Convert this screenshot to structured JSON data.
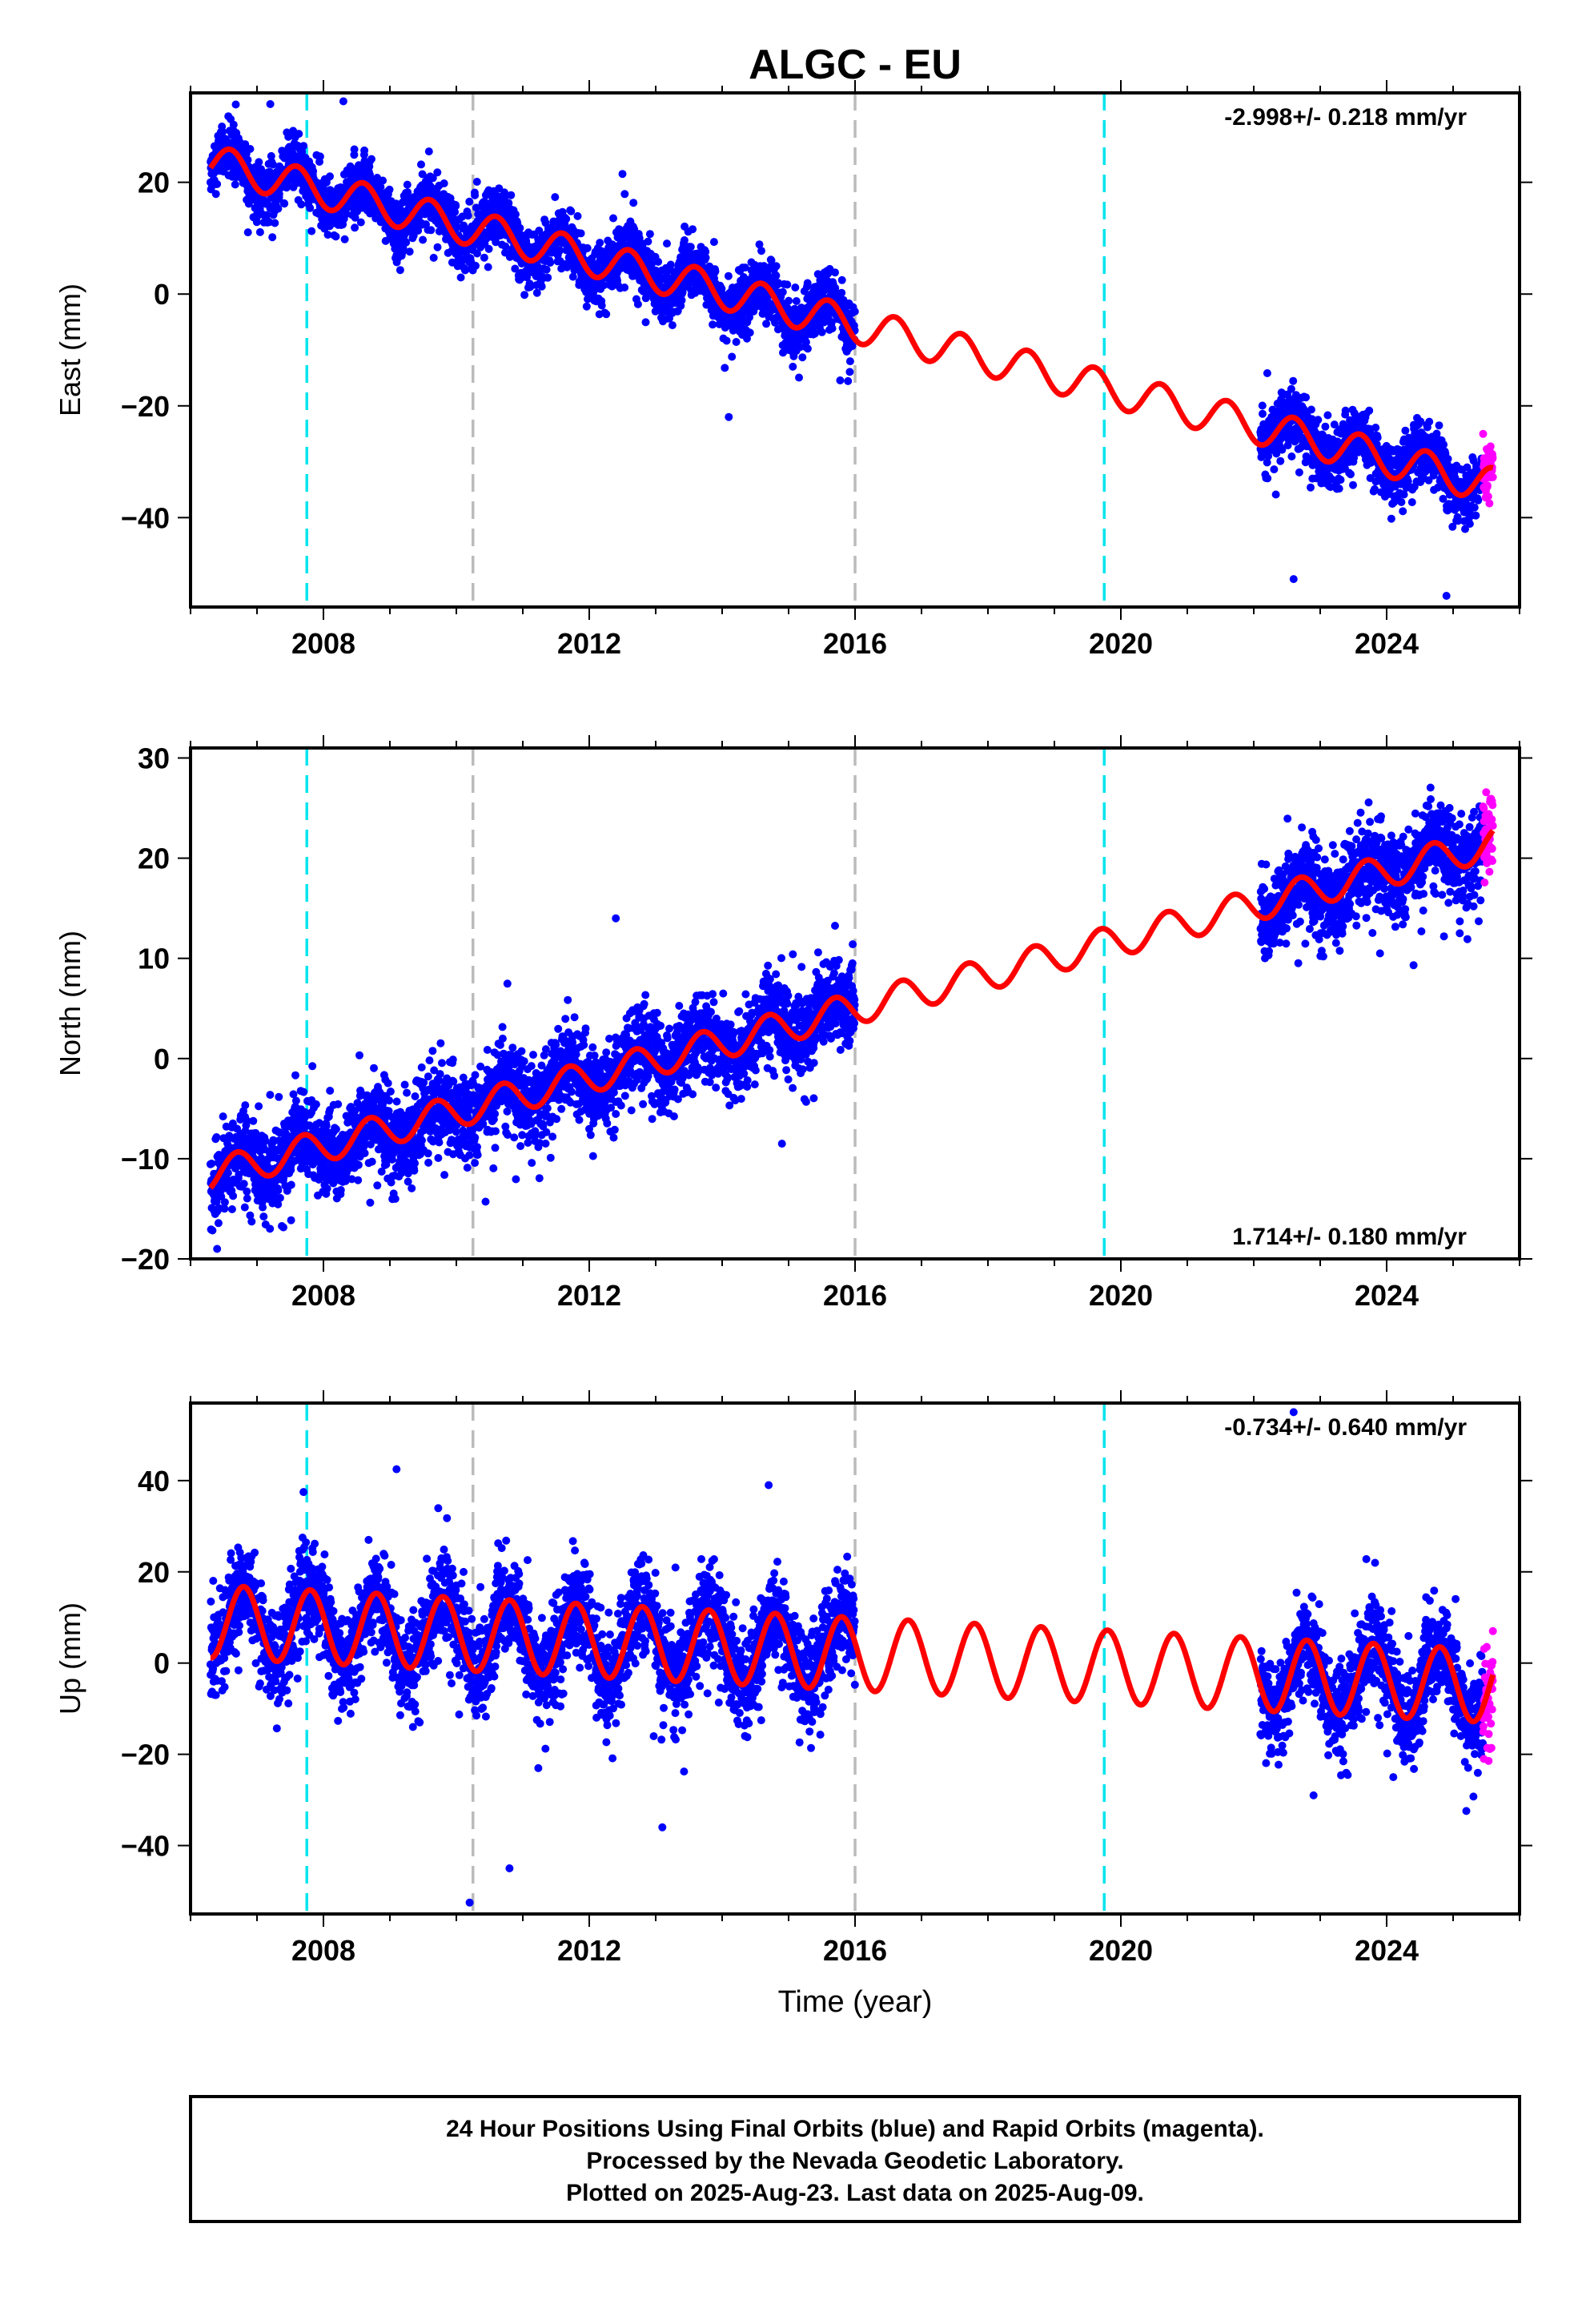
{
  "chart_data": {
    "type": "scatter",
    "title": "ALGC - EU",
    "xlabel": "Time (year)",
    "xlim": [
      2006.0,
      2026.0
    ],
    "x_ticks": [
      2008,
      2012,
      2016,
      2020,
      2024
    ],
    "x_tick_labels": [
      "2008",
      "2012",
      "2016",
      "2020",
      "2024"
    ],
    "event_lines": [
      {
        "year": 2007.75,
        "color": "#00e5ee"
      },
      {
        "year": 2010.25,
        "color": "#bbbbbb"
      },
      {
        "year": 2016.0,
        "color": "#bbbbbb"
      },
      {
        "year": 2019.75,
        "color": "#00e5ee"
      }
    ],
    "data_gap": [
      2016.0,
      2022.1
    ],
    "data_range": [
      2006.3,
      2025.6
    ],
    "rapid_range": [
      2025.45,
      2025.6
    ],
    "colors": {
      "final": "#0000ff",
      "rapid": "#ff00ff",
      "model": "#ff0000"
    },
    "panels": [
      {
        "name": "east",
        "ylabel": "East (mm)",
        "ylim": [
          -56,
          36
        ],
        "y_ticks": [
          -40,
          -20,
          0,
          20
        ],
        "y_tick_labels": [
          "−40",
          "−20",
          "0",
          "20"
        ],
        "rate_text": "-2.998+/- 0.218 mm/yr",
        "rate_position": "top-right",
        "trend_mm_per_yr": -2.998,
        "ref_year": 2016.0,
        "offset_mm": -5.5,
        "seasonal_amp_mm": 3.2,
        "seasonal_phase_yr": 0.35,
        "noise_mm": 2.5,
        "steps": [
          {
            "year": 2019.75,
            "mm": 0.0
          }
        ],
        "outliers": [
          [
            2007.2,
            34
          ],
          [
            2008.3,
            34.5
          ],
          [
            2012.5,
            21.5
          ],
          [
            2014.1,
            -22
          ],
          [
            2024.9,
            -54
          ],
          [
            2022.6,
            -51
          ]
        ]
      },
      {
        "name": "north",
        "ylabel": "North (mm)",
        "ylim": [
          -20,
          31
        ],
        "y_ticks": [
          -20,
          -10,
          0,
          10,
          20,
          30
        ],
        "y_tick_labels": [
          "−20",
          "−10",
          "0",
          "10",
          "20",
          "30"
        ],
        "rate_text": "1.714+/- 0.180 mm/yr",
        "rate_position": "bottom-right",
        "trend_mm_per_yr": 1.714,
        "ref_year": 2016.0,
        "offset_mm": 5.0,
        "seasonal_amp_mm": 1.6,
        "seasonal_phase_yr": 0.45,
        "noise_mm": 2.0,
        "steps": [
          {
            "year": 2019.75,
            "mm": 0.0
          }
        ],
        "outliers": [
          [
            2012.4,
            14
          ],
          [
            2006.4,
            -19
          ],
          [
            2023.9,
            10.5
          ],
          [
            2025.1,
            12.5
          ],
          [
            2014.9,
            -8.5
          ]
        ]
      },
      {
        "name": "up",
        "ylabel": "Up (mm)",
        "ylim": [
          -55,
          57
        ],
        "y_ticks": [
          -40,
          -20,
          0,
          20,
          40
        ],
        "y_tick_labels": [
          "−40",
          "−20",
          "0",
          "20",
          "40"
        ],
        "rate_text": "-0.734+/- 0.640 mm/yr",
        "rate_position": "top-right",
        "trend_mm_per_yr": -0.734,
        "ref_year": 2016.0,
        "offset_mm": 2.0,
        "seasonal_amp_mm": 8.0,
        "seasonal_phase_yr": 0.55,
        "noise_mm": 5.0,
        "steps": [
          {
            "year": 2019.75,
            "mm": 0.0
          }
        ],
        "outliers": [
          [
            2009.1,
            42.5
          ],
          [
            2014.7,
            39
          ],
          [
            2007.7,
            37.5
          ],
          [
            2010.2,
            -52.5
          ],
          [
            2010.8,
            -45
          ],
          [
            2013.1,
            -36
          ],
          [
            2022.6,
            55
          ],
          [
            2022.9,
            -29
          ],
          [
            2024.1,
            -25
          ]
        ]
      }
    ]
  },
  "footer": {
    "line1": "24 Hour Positions Using Final Orbits (blue) and Rapid Orbits (magenta).",
    "line2": "Processed by the Nevada Geodetic Laboratory.",
    "line3": "Plotted on 2025-Aug-23. Last data on 2025-Aug-09."
  }
}
